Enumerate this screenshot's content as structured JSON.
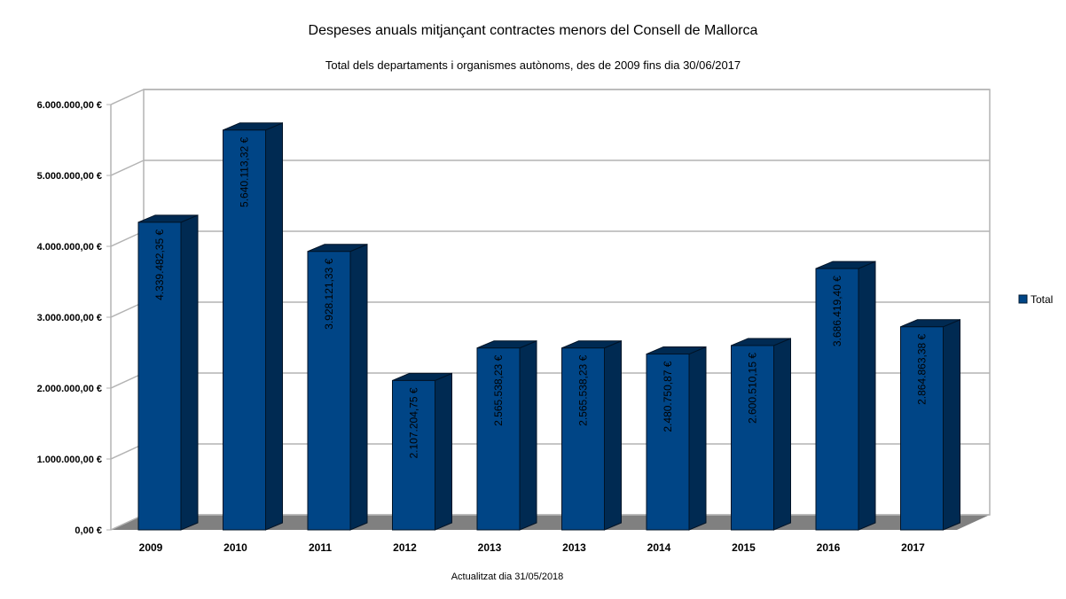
{
  "chart_data": {
    "type": "bar",
    "title": "Despeses anuals mitjançant contractes menors del Consell de Mallorca",
    "subtitle": "Total dels departaments i organismes autònoms, des de 2009 fins dia 30/06/2017",
    "footer": "Actualitzat dia 31/05/2018",
    "xlabel": "",
    "ylabel": "",
    "ylim": [
      0,
      6000000
    ],
    "grid": true,
    "legend_position": "right",
    "y_ticks": [
      0,
      1000000,
      2000000,
      3000000,
      4000000,
      5000000,
      6000000
    ],
    "y_tick_labels": [
      "0,00 €",
      "1.000.000,00 €",
      "2.000.000,00 €",
      "3.000.000,00 €",
      "4.000.000,00 €",
      "5.000.000,00 €",
      "6.000.000,00 €"
    ],
    "categories": [
      "2009",
      "2010",
      "2011",
      "2012",
      "2013",
      "2013",
      "2014",
      "2015",
      "2016",
      "2017"
    ],
    "series": [
      {
        "name": "Total",
        "color": "#004586",
        "values": [
          4339482.35,
          5640113.32,
          3928121.33,
          2107204.75,
          2565538.23,
          2565538.23,
          2480750.87,
          2600510.15,
          3686419.4,
          2864863.38
        ],
        "labels": [
          "4.339.482,35 €",
          "5.640.113,32 €",
          "3.928.121,33 €",
          "2.107.204,75 €",
          "2.565.538,23 €",
          "2.565.538,23 €",
          "2.480.750,87 €",
          "2.600.510,15 €",
          "3.686.419,40 €",
          "2.864.863,38 €"
        ]
      }
    ]
  }
}
